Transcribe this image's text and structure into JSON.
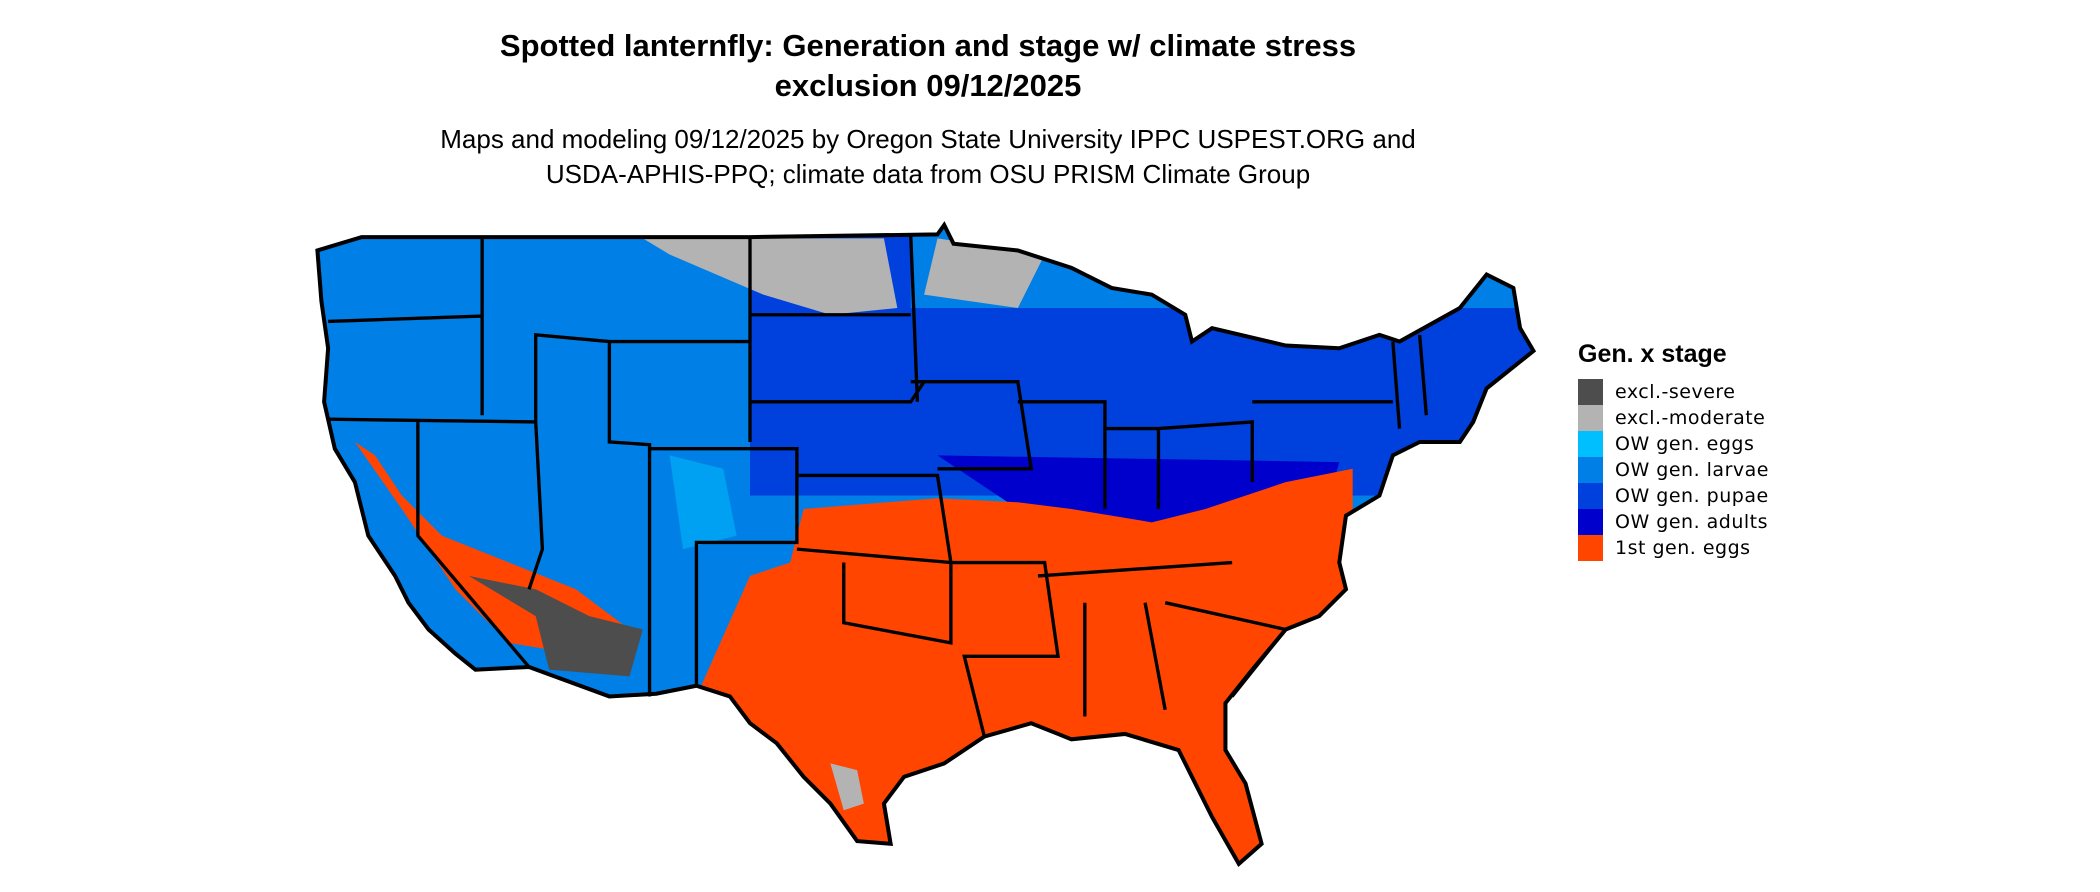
{
  "title": {
    "line1": "Spotted lanternfly: Generation and stage w/ climate stress",
    "line2": "exclusion 09/12/2025"
  },
  "subtitle": {
    "line1": "Maps and modeling 09/12/2025 by Oregon State University IPPC USPEST.ORG and",
    "line2": "USDA-APHIS-PPQ; climate data from OSU PRISM Climate Group"
  },
  "legend": {
    "title": "Gen. x stage",
    "items": [
      {
        "label": "excl.-severe",
        "color": "#4D4D4D"
      },
      {
        "label": "excl.-moderate",
        "color": "#B3B3B3"
      },
      {
        "label": "OW gen. eggs",
        "color": "#00BFFF"
      },
      {
        "label": "OW gen. larvae",
        "color": "#0080E6"
      },
      {
        "label": "OW gen. pupae",
        "color": "#0040DD"
      },
      {
        "label": "OW gen. adults",
        "color": "#0000CC"
      },
      {
        "label": "1st gen. eggs",
        "color": "#FF4500"
      }
    ]
  }
}
